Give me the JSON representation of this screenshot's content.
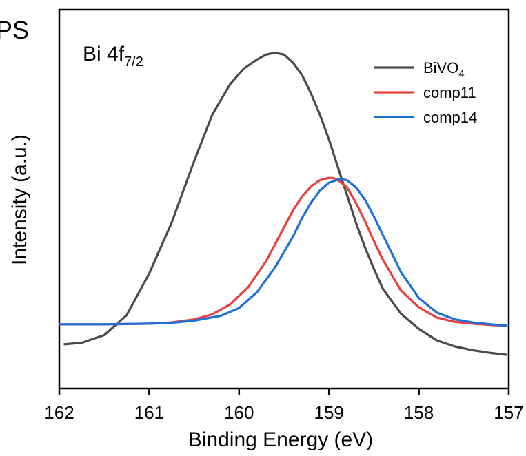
{
  "panel_tag": "PS",
  "annotation": {
    "main": "Bi 4f",
    "subscript": "7/2"
  },
  "chart_data": {
    "type": "line",
    "title": "",
    "xlabel": "Binding Energy (eV)",
    "ylabel": "Intensity (a.u.)",
    "xlim": [
      162,
      157
    ],
    "x_reversed": true,
    "ylim": [
      0,
      100
    ],
    "y_ticks_shown": false,
    "grid": false,
    "legend_position": "top-right",
    "x_ticks": [
      {
        "value": 162,
        "label": "162"
      },
      {
        "value": 161,
        "label": "161"
      },
      {
        "value": 160,
        "label": "160"
      },
      {
        "value": 159,
        "label": "159"
      },
      {
        "value": 158,
        "label": "158"
      },
      {
        "value": 157,
        "label": "157"
      }
    ],
    "series": [
      {
        "name": "BiVO",
        "name_subscript": "4",
        "color": "#4a4a4a",
        "x": [
          161.95,
          161.75,
          161.5,
          161.25,
          161.0,
          160.75,
          160.5,
          160.3,
          160.1,
          159.95,
          159.8,
          159.7,
          159.6,
          159.5,
          159.4,
          159.3,
          159.2,
          159.1,
          159.0,
          158.9,
          158.8,
          158.7,
          158.6,
          158.5,
          158.4,
          158.2,
          158.0,
          157.8,
          157.6,
          157.4,
          157.2,
          157.02
        ],
        "y": [
          4.5,
          5.0,
          7.5,
          14.0,
          27.5,
          44.0,
          64.0,
          79.0,
          89.0,
          94.0,
          97.0,
          98.6,
          99.2,
          98.6,
          96.0,
          92.0,
          86.0,
          79.0,
          71.0,
          62.0,
          53.0,
          44.0,
          36.0,
          29.0,
          22.5,
          14.5,
          9.5,
          5.8,
          3.8,
          2.6,
          1.7,
          1.1
        ]
      },
      {
        "name": "comp11",
        "color": "#e8403f",
        "x": [
          162.0,
          161.5,
          161.0,
          160.75,
          160.5,
          160.3,
          160.1,
          159.9,
          159.7,
          159.5,
          159.4,
          159.3,
          159.2,
          159.1,
          159.0,
          158.95,
          158.9,
          158.8,
          158.7,
          158.6,
          158.5,
          158.4,
          158.2,
          158.0,
          157.8,
          157.6,
          157.4,
          157.2,
          157.02
        ],
        "y": [
          11.0,
          11.0,
          11.2,
          11.6,
          12.6,
          14.2,
          17.5,
          23.0,
          31.5,
          42.5,
          48.0,
          52.5,
          55.8,
          57.8,
          58.6,
          58.5,
          57.8,
          55.5,
          50.5,
          44.5,
          38.0,
          32.0,
          22.0,
          16.5,
          13.2,
          11.8,
          11.2,
          10.8,
          10.5
        ]
      },
      {
        "name": "comp14",
        "color": "#1f6fd6",
        "x": [
          162.0,
          161.5,
          161.0,
          160.75,
          160.5,
          160.2,
          160.0,
          159.8,
          159.6,
          159.4,
          159.3,
          159.2,
          159.1,
          159.0,
          158.9,
          158.85,
          158.8,
          158.7,
          158.6,
          158.5,
          158.4,
          158.3,
          158.2,
          158.0,
          157.8,
          157.6,
          157.4,
          157.2,
          157.02
        ],
        "y": [
          11.0,
          11.0,
          11.2,
          11.5,
          12.2,
          13.8,
          16.3,
          21.5,
          29.5,
          39.5,
          45.5,
          50.5,
          54.5,
          57.0,
          58.0,
          58.1,
          57.8,
          55.5,
          51.5,
          46.0,
          40.0,
          34.0,
          28.0,
          19.5,
          14.8,
          12.6,
          11.6,
          11.0,
          10.6
        ]
      }
    ]
  }
}
